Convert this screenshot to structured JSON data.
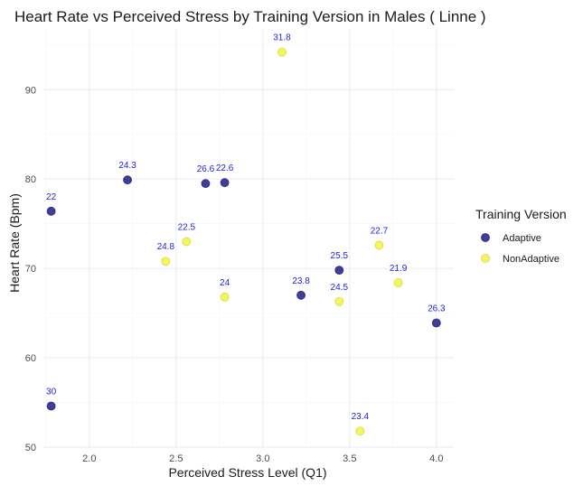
{
  "chart_data": {
    "type": "scatter",
    "title": "Heart Rate vs Perceived Stress by Training Version in Males ( Linne )",
    "xlabel": "Perceived Stress Level (Q1)",
    "ylabel": "Heart Rate (Bpm)",
    "xlim": [
      1.73,
      4.1
    ],
    "ylim": [
      49.8,
      96.8
    ],
    "x_ticks": [
      "2.0",
      "2.5",
      "3.0",
      "3.5",
      "4.0"
    ],
    "y_ticks": [
      "50",
      "60",
      "70",
      "80",
      "90"
    ],
    "grid": true,
    "legend": {
      "title": "Training Version",
      "position": "right"
    },
    "colors": {
      "Adaptive": "#3f3f9a",
      "NonAdaptive": "#f5f55c"
    },
    "series": [
      {
        "name": "Adaptive",
        "points": [
          {
            "x": 1.78,
            "y": 76.4,
            "label": "22"
          },
          {
            "x": 2.22,
            "y": 79.9,
            "label": "24.3"
          },
          {
            "x": 2.67,
            "y": 79.5,
            "label": "26.6"
          },
          {
            "x": 2.78,
            "y": 79.6,
            "label": "22.6"
          },
          {
            "x": 3.22,
            "y": 67.0,
            "label": "23.8"
          },
          {
            "x": 3.44,
            "y": 69.8,
            "label": "25.5"
          },
          {
            "x": 4.0,
            "y": 63.9,
            "label": "26.3"
          },
          {
            "x": 1.78,
            "y": 54.6,
            "label": "30"
          }
        ]
      },
      {
        "name": "NonAdaptive",
        "points": [
          {
            "x": 3.11,
            "y": 94.2,
            "label": "31.8"
          },
          {
            "x": 2.56,
            "y": 73.0,
            "label": "22.5"
          },
          {
            "x": 2.44,
            "y": 70.8,
            "label": "24.8"
          },
          {
            "x": 2.78,
            "y": 66.8,
            "label": "24"
          },
          {
            "x": 3.44,
            "y": 66.3,
            "label": "24.5"
          },
          {
            "x": 3.67,
            "y": 72.6,
            "label": "22.7"
          },
          {
            "x": 3.78,
            "y": 68.4,
            "label": "21.9"
          },
          {
            "x": 3.56,
            "y": 51.8,
            "label": "23.4"
          }
        ]
      }
    ]
  }
}
